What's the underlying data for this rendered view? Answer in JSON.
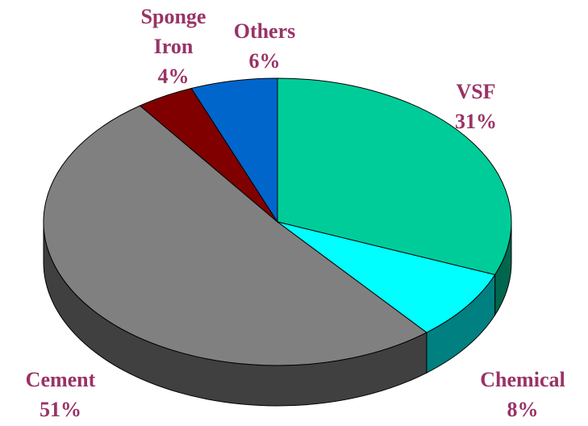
{
  "chart_data": {
    "type": "pie",
    "categories": [
      "VSF",
      "Chemical",
      "Cement",
      "Sponge Iron",
      "Others"
    ],
    "values": [
      31,
      8,
      51,
      4,
      6
    ],
    "value_labels": [
      "31%",
      "8%",
      "51%",
      "4%",
      "6%"
    ],
    "colors": [
      "#00cc99",
      "#00ffff",
      "#808080",
      "#800000",
      "#0066cc"
    ],
    "label_color": "#993366"
  }
}
